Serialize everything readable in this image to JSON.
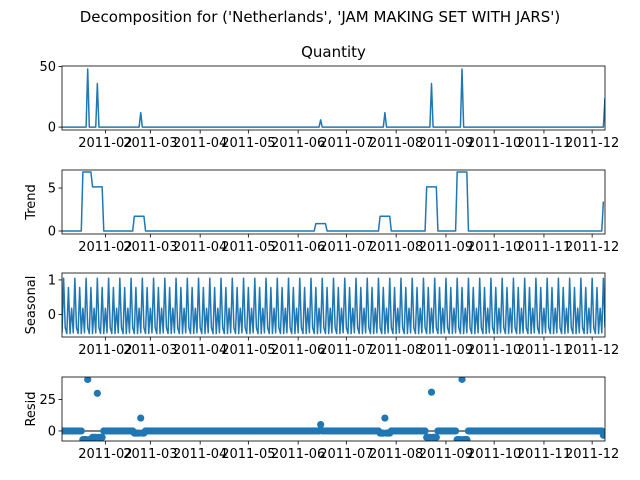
{
  "chart_data": {
    "type": "line",
    "suptitle": "Decomposition for ('Netherlands', 'JAM MAKING SET WITH JARS')",
    "x_range": [
      "2011-01-05",
      "2011-12-09"
    ],
    "x_ticks": [
      "2011-01",
      "2011-02",
      "2011-03",
      "2011-04",
      "2011-05",
      "2011-06",
      "2011-07",
      "2011-08",
      "2011-09",
      "2011-10",
      "2011-11",
      "2011-12"
    ],
    "x_tick_labels": [
      "2011-01",
      "2011-02",
      "2011-03",
      "2011-04",
      "2011-05",
      "2011-06",
      "2011-07",
      "2011-08",
      "2011-09",
      "2011-10",
      "2011-11",
      "2011-12"
    ],
    "color": "#1f77b4",
    "panels": [
      {
        "key": "observed",
        "title": "Quantity",
        "ylabel": "",
        "kind": "line",
        "ylim": [
          -2.4,
          50.5
        ],
        "yticks": [
          0,
          50
        ],
        "points": [
          [
            "2011-01-05",
            0
          ],
          [
            "2011-01-20",
            0
          ],
          [
            "2011-01-21",
            48
          ],
          [
            "2011-01-22",
            0
          ],
          [
            "2011-01-26",
            0
          ],
          [
            "2011-01-27",
            36
          ],
          [
            "2011-01-28",
            0
          ],
          [
            "2011-02-22",
            0
          ],
          [
            "2011-02-23",
            12
          ],
          [
            "2011-02-24",
            0
          ],
          [
            "2011-06-14",
            0
          ],
          [
            "2011-06-15",
            6
          ],
          [
            "2011-06-16",
            0
          ],
          [
            "2011-07-24",
            0
          ],
          [
            "2011-07-25",
            12
          ],
          [
            "2011-07-26",
            0
          ],
          [
            "2011-08-22",
            0
          ],
          [
            "2011-08-23",
            36
          ],
          [
            "2011-08-24",
            0
          ],
          [
            "2011-09-10",
            0
          ],
          [
            "2011-09-11",
            48
          ],
          [
            "2011-09-12",
            0
          ],
          [
            "2011-12-08",
            0
          ],
          [
            "2011-12-09",
            24
          ]
        ]
      },
      {
        "key": "trend",
        "title": "",
        "ylabel": "Trend",
        "kind": "line",
        "ylim": [
          -0.35,
          7.1
        ],
        "yticks": [
          0,
          5
        ],
        "points": [
          [
            "2011-01-05",
            0
          ],
          [
            "2011-01-17",
            0
          ],
          [
            "2011-01-18",
            6.86
          ],
          [
            "2011-01-23",
            6.86
          ],
          [
            "2011-01-24",
            5.14
          ],
          [
            "2011-01-30",
            5.14
          ],
          [
            "2011-01-31",
            0
          ],
          [
            "2011-02-18",
            0
          ],
          [
            "2011-02-19",
            1.71
          ],
          [
            "2011-02-25",
            1.71
          ],
          [
            "2011-02-26",
            0
          ],
          [
            "2011-06-11",
            0
          ],
          [
            "2011-06-12",
            0.86
          ],
          [
            "2011-06-18",
            0.86
          ],
          [
            "2011-06-19",
            0
          ],
          [
            "2011-07-21",
            0
          ],
          [
            "2011-07-22",
            1.71
          ],
          [
            "2011-07-28",
            1.71
          ],
          [
            "2011-07-29",
            0
          ],
          [
            "2011-08-19",
            0
          ],
          [
            "2011-08-20",
            5.14
          ],
          [
            "2011-08-26",
            5.14
          ],
          [
            "2011-08-27",
            0
          ],
          [
            "2011-09-07",
            0
          ],
          [
            "2011-09-08",
            6.86
          ],
          [
            "2011-09-14",
            6.86
          ],
          [
            "2011-09-15",
            0
          ],
          [
            "2011-12-07",
            0
          ],
          [
            "2011-12-08",
            3.43
          ]
        ]
      },
      {
        "key": "seasonal",
        "title": "",
        "ylabel": "Seasonal",
        "kind": "seasonal",
        "ylim": [
          -0.65,
          1.2
        ],
        "yticks": [
          0,
          1
        ],
        "period_days": 7,
        "cycle": [
          -0.53,
          1.05,
          -0.38,
          -0.55,
          0.78,
          -0.55,
          0.18
        ]
      },
      {
        "key": "resid",
        "title": "",
        "ylabel": "Resid",
        "kind": "scatter",
        "ylim": [
          -8,
          43
        ],
        "yticks": [
          0,
          25
        ],
        "outliers": [
          [
            "2011-01-21",
            41
          ],
          [
            "2011-01-27",
            30
          ],
          [
            "2011-02-23",
            10.3
          ],
          [
            "2011-06-15",
            5.1
          ],
          [
            "2011-07-25",
            10.3
          ],
          [
            "2011-08-23",
            30.9
          ],
          [
            "2011-09-11",
            41.1
          ],
          [
            "2011-01-18",
            -6.9
          ],
          [
            "2011-01-19",
            -6.9
          ],
          [
            "2011-01-20",
            -6.9
          ],
          [
            "2011-01-22",
            -6.9
          ],
          [
            "2011-01-23",
            -6.9
          ],
          [
            "2011-01-24",
            -5.1
          ],
          [
            "2011-01-25",
            -5.1
          ],
          [
            "2011-01-26",
            -5.1
          ],
          [
            "2011-01-28",
            -5.1
          ],
          [
            "2011-01-29",
            -5.1
          ],
          [
            "2011-01-30",
            -5.1
          ],
          [
            "2011-02-19",
            -1.7
          ],
          [
            "2011-02-20",
            -1.7
          ],
          [
            "2011-02-21",
            -1.7
          ],
          [
            "2011-02-22",
            -1.7
          ],
          [
            "2011-02-24",
            -1.7
          ],
          [
            "2011-02-25",
            -1.7
          ],
          [
            "2011-07-22",
            -1.7
          ],
          [
            "2011-07-23",
            -1.7
          ],
          [
            "2011-07-24",
            -1.7
          ],
          [
            "2011-07-26",
            -1.7
          ],
          [
            "2011-07-27",
            -1.7
          ],
          [
            "2011-07-28",
            -1.7
          ],
          [
            "2011-08-20",
            -5.1
          ],
          [
            "2011-08-21",
            -5.1
          ],
          [
            "2011-08-22",
            -5.1
          ],
          [
            "2011-08-24",
            -5.1
          ],
          [
            "2011-08-25",
            -5.1
          ],
          [
            "2011-08-26",
            -5.1
          ],
          [
            "2011-09-08",
            -6.9
          ],
          [
            "2011-09-09",
            -6.9
          ],
          [
            "2011-09-10",
            -6.9
          ],
          [
            "2011-09-12",
            -6.9
          ],
          [
            "2011-09-13",
            -6.9
          ],
          [
            "2011-09-14",
            -6.9
          ],
          [
            "2011-12-08",
            -3.4
          ],
          [
            "2011-12-09",
            -2.0
          ]
        ]
      }
    ]
  }
}
